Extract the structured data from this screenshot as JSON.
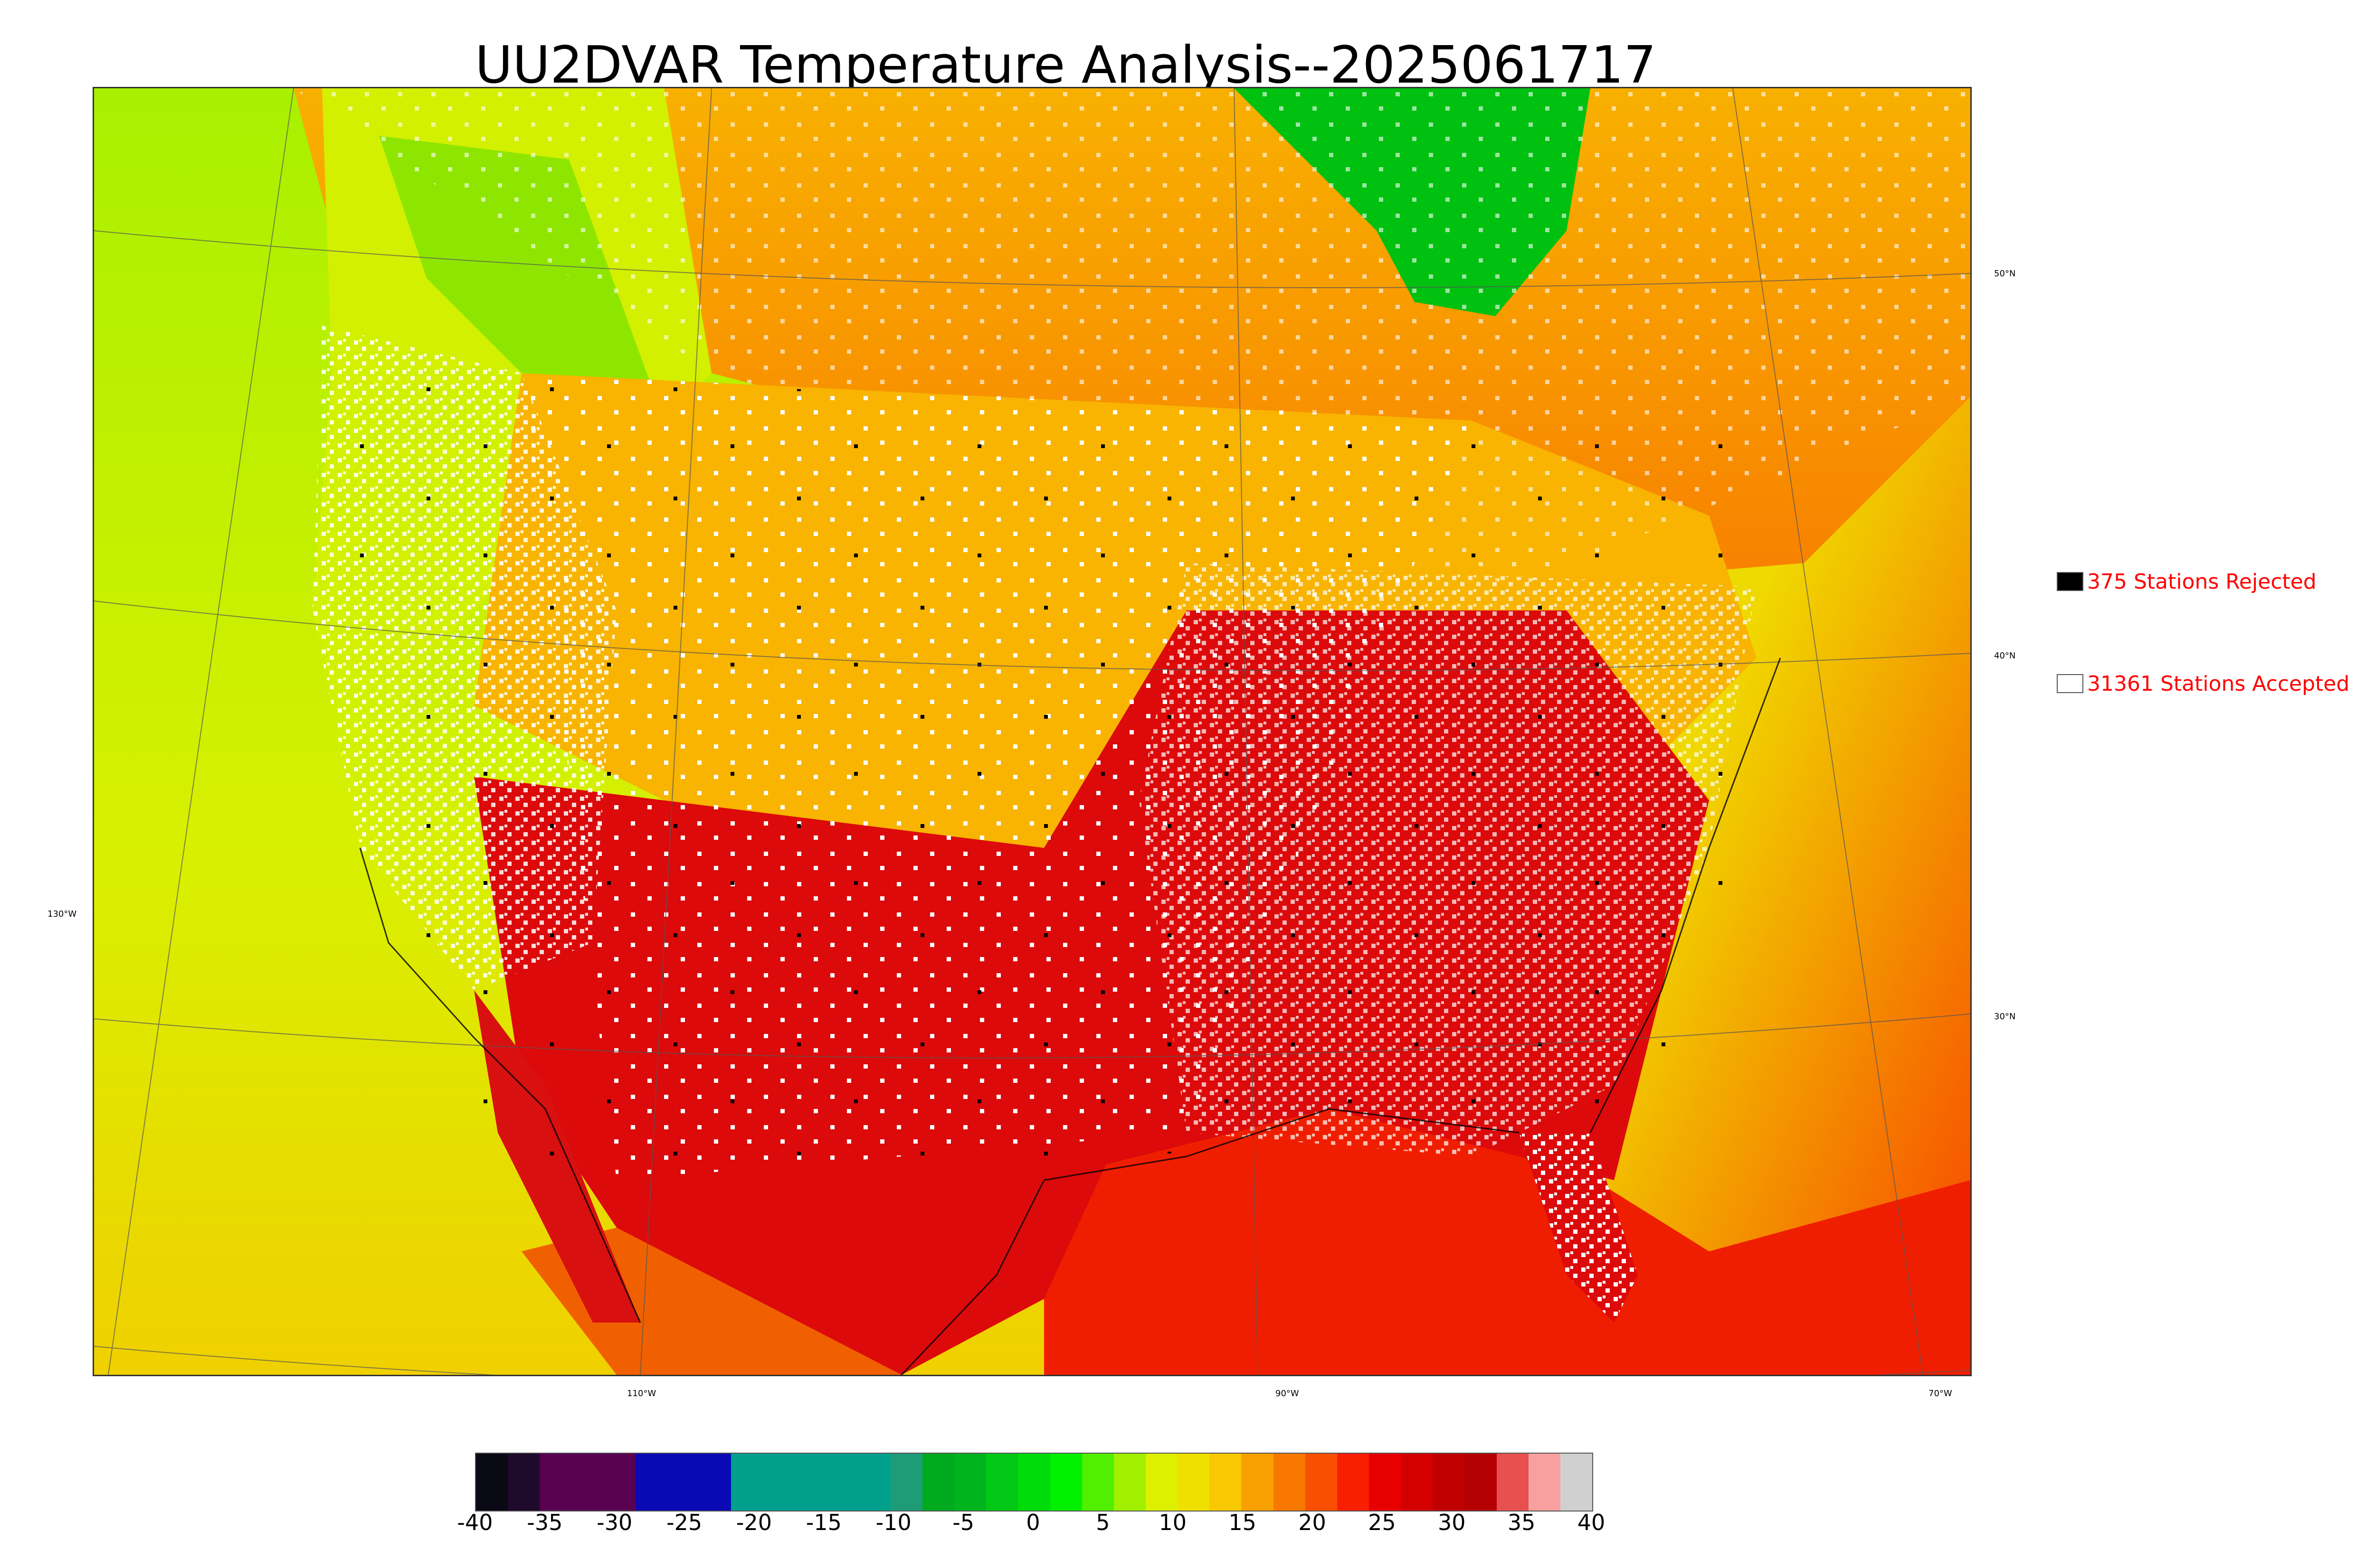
{
  "title": "UU2DVAR Temperature Analysis--2025061717",
  "legend": {
    "rejected": {
      "label": "375 Stations Rejected",
      "color": "#000000"
    },
    "accepted": {
      "label": "31361 Stations Accepted",
      "color": "#ffffff"
    }
  },
  "lat_labels": [
    "50°N",
    "40°N",
    "30°N"
  ],
  "lon_labels": [
    "130°W",
    "110°W",
    "90°W",
    "70°W"
  ],
  "colorbar": {
    "ticks": [
      "-40",
      "-35",
      "-30",
      "-25",
      "-20",
      "-15",
      "-10",
      "-5",
      "0",
      "5",
      "10",
      "15",
      "20",
      "25",
      "30",
      "35",
      "40"
    ],
    "colors": [
      "#0a0a14",
      "#1e0a2a",
      "#5a0050",
      "#5a0050",
      "#5a0050",
      "#0a0ab4",
      "#0a0ab4",
      "#0a0ab4",
      "#00a08c",
      "#00a08c",
      "#00a08c",
      "#00a08c",
      "#00a08c",
      "#1e9c78",
      "#00aa1e",
      "#00b41e",
      "#00c814",
      "#00dc0a",
      "#00f000",
      "#50f000",
      "#a0f000",
      "#dcf000",
      "#f0e000",
      "#f8c800",
      "#f8a000",
      "#f87800",
      "#f85000",
      "#f81e00",
      "#e80000",
      "#d40000",
      "#c00000",
      "#b40000",
      "#e85050",
      "#f8a0a0",
      "#d0d0d0"
    ]
  },
  "map_colors": {
    "ocean_pacific": "#c8f000",
    "ocean_atlantic": "#f0e000",
    "gulf": "#f02000",
    "hot_southwest": "#dc0a0a",
    "hot_southeast": "#dc0a0a",
    "warm_plains": "#f8b400",
    "canada_north": "#f0b000",
    "cool_northwest": "#b4f000",
    "hudson_bay": "#00c000",
    "great_lakes": "#10c020",
    "station_accepted": "#ffffff",
    "station_rejected": "#000000"
  }
}
